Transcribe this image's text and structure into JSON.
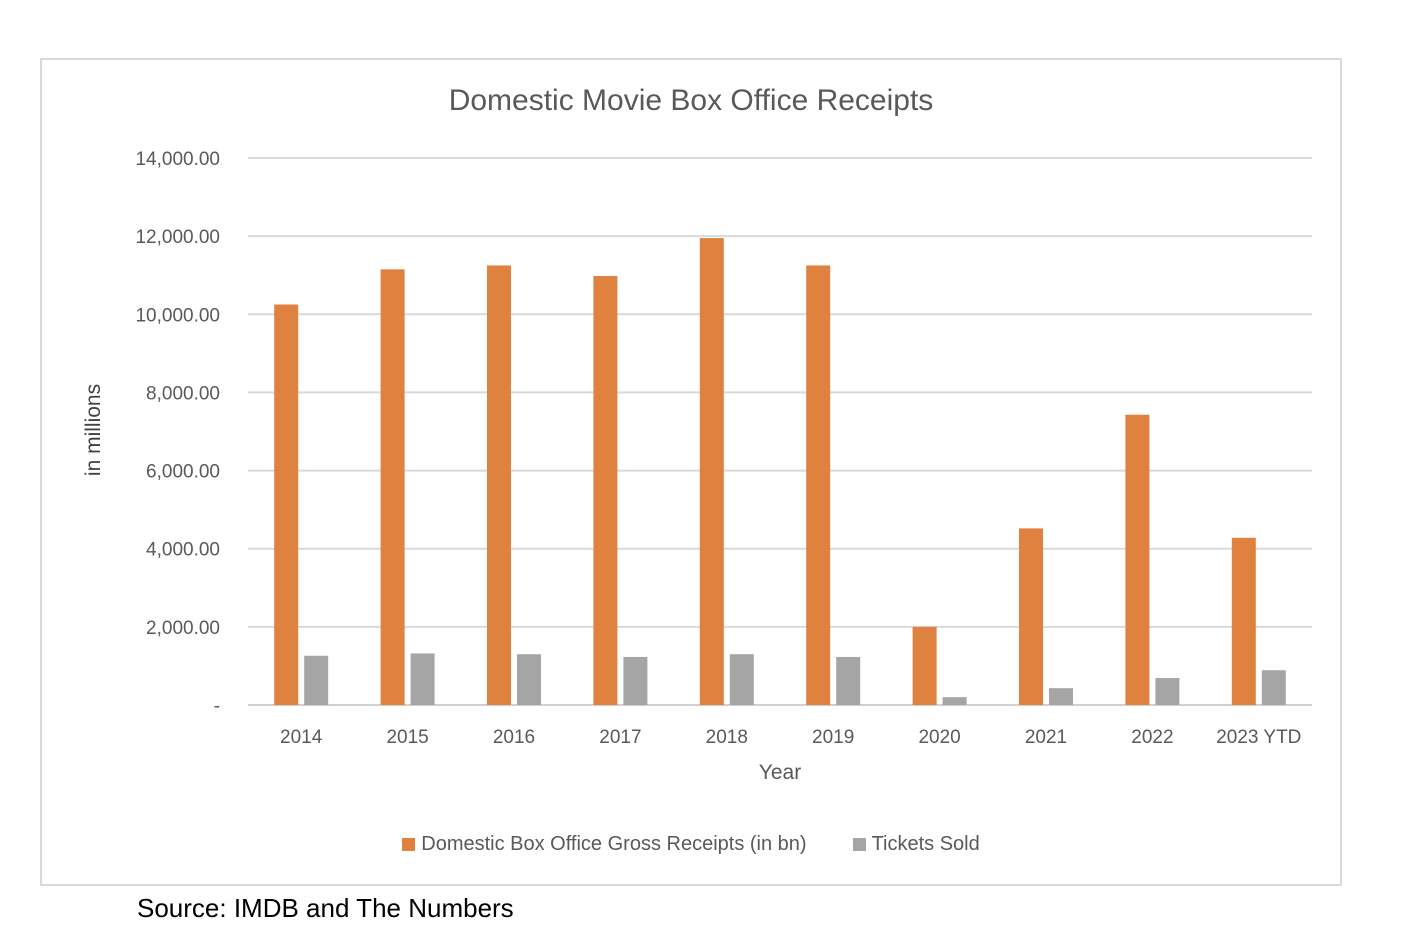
{
  "chart_data": {
    "type": "bar",
    "title": "Domestic Movie Box Office Receipts",
    "xlabel": "Year",
    "ylabel": "in millions",
    "categories": [
      "2014",
      "2015",
      "2016",
      "2017",
      "2018",
      "2019",
      "2020",
      "2021",
      "2022",
      "2023 YTD"
    ],
    "series": [
      {
        "name": "Domestic Box Office Gross Receipts (in bn)",
        "color": "#e0823f",
        "values": [
          10250,
          11150,
          11250,
          10980,
          11950,
          11250,
          2000,
          4520,
          7430,
          4280
        ]
      },
      {
        "name": "Tickets Sold",
        "color": "#a5a5a5",
        "values": [
          1260,
          1320,
          1300,
          1230,
          1300,
          1230,
          200,
          430,
          690,
          890
        ]
      }
    ],
    "ylim": [
      0,
      14000
    ],
    "yticks": [
      0,
      2000,
      4000,
      6000,
      8000,
      10000,
      12000,
      14000
    ],
    "ytick_labels": [
      "-",
      "2,000.00",
      "4,000.00",
      "6,000.00",
      "8,000.00",
      "10,000.00",
      "12,000.00",
      "14,000.00"
    ],
    "grid": true,
    "legend_position": "bottom"
  },
  "source_note": "Source:  IMDB and The Numbers"
}
